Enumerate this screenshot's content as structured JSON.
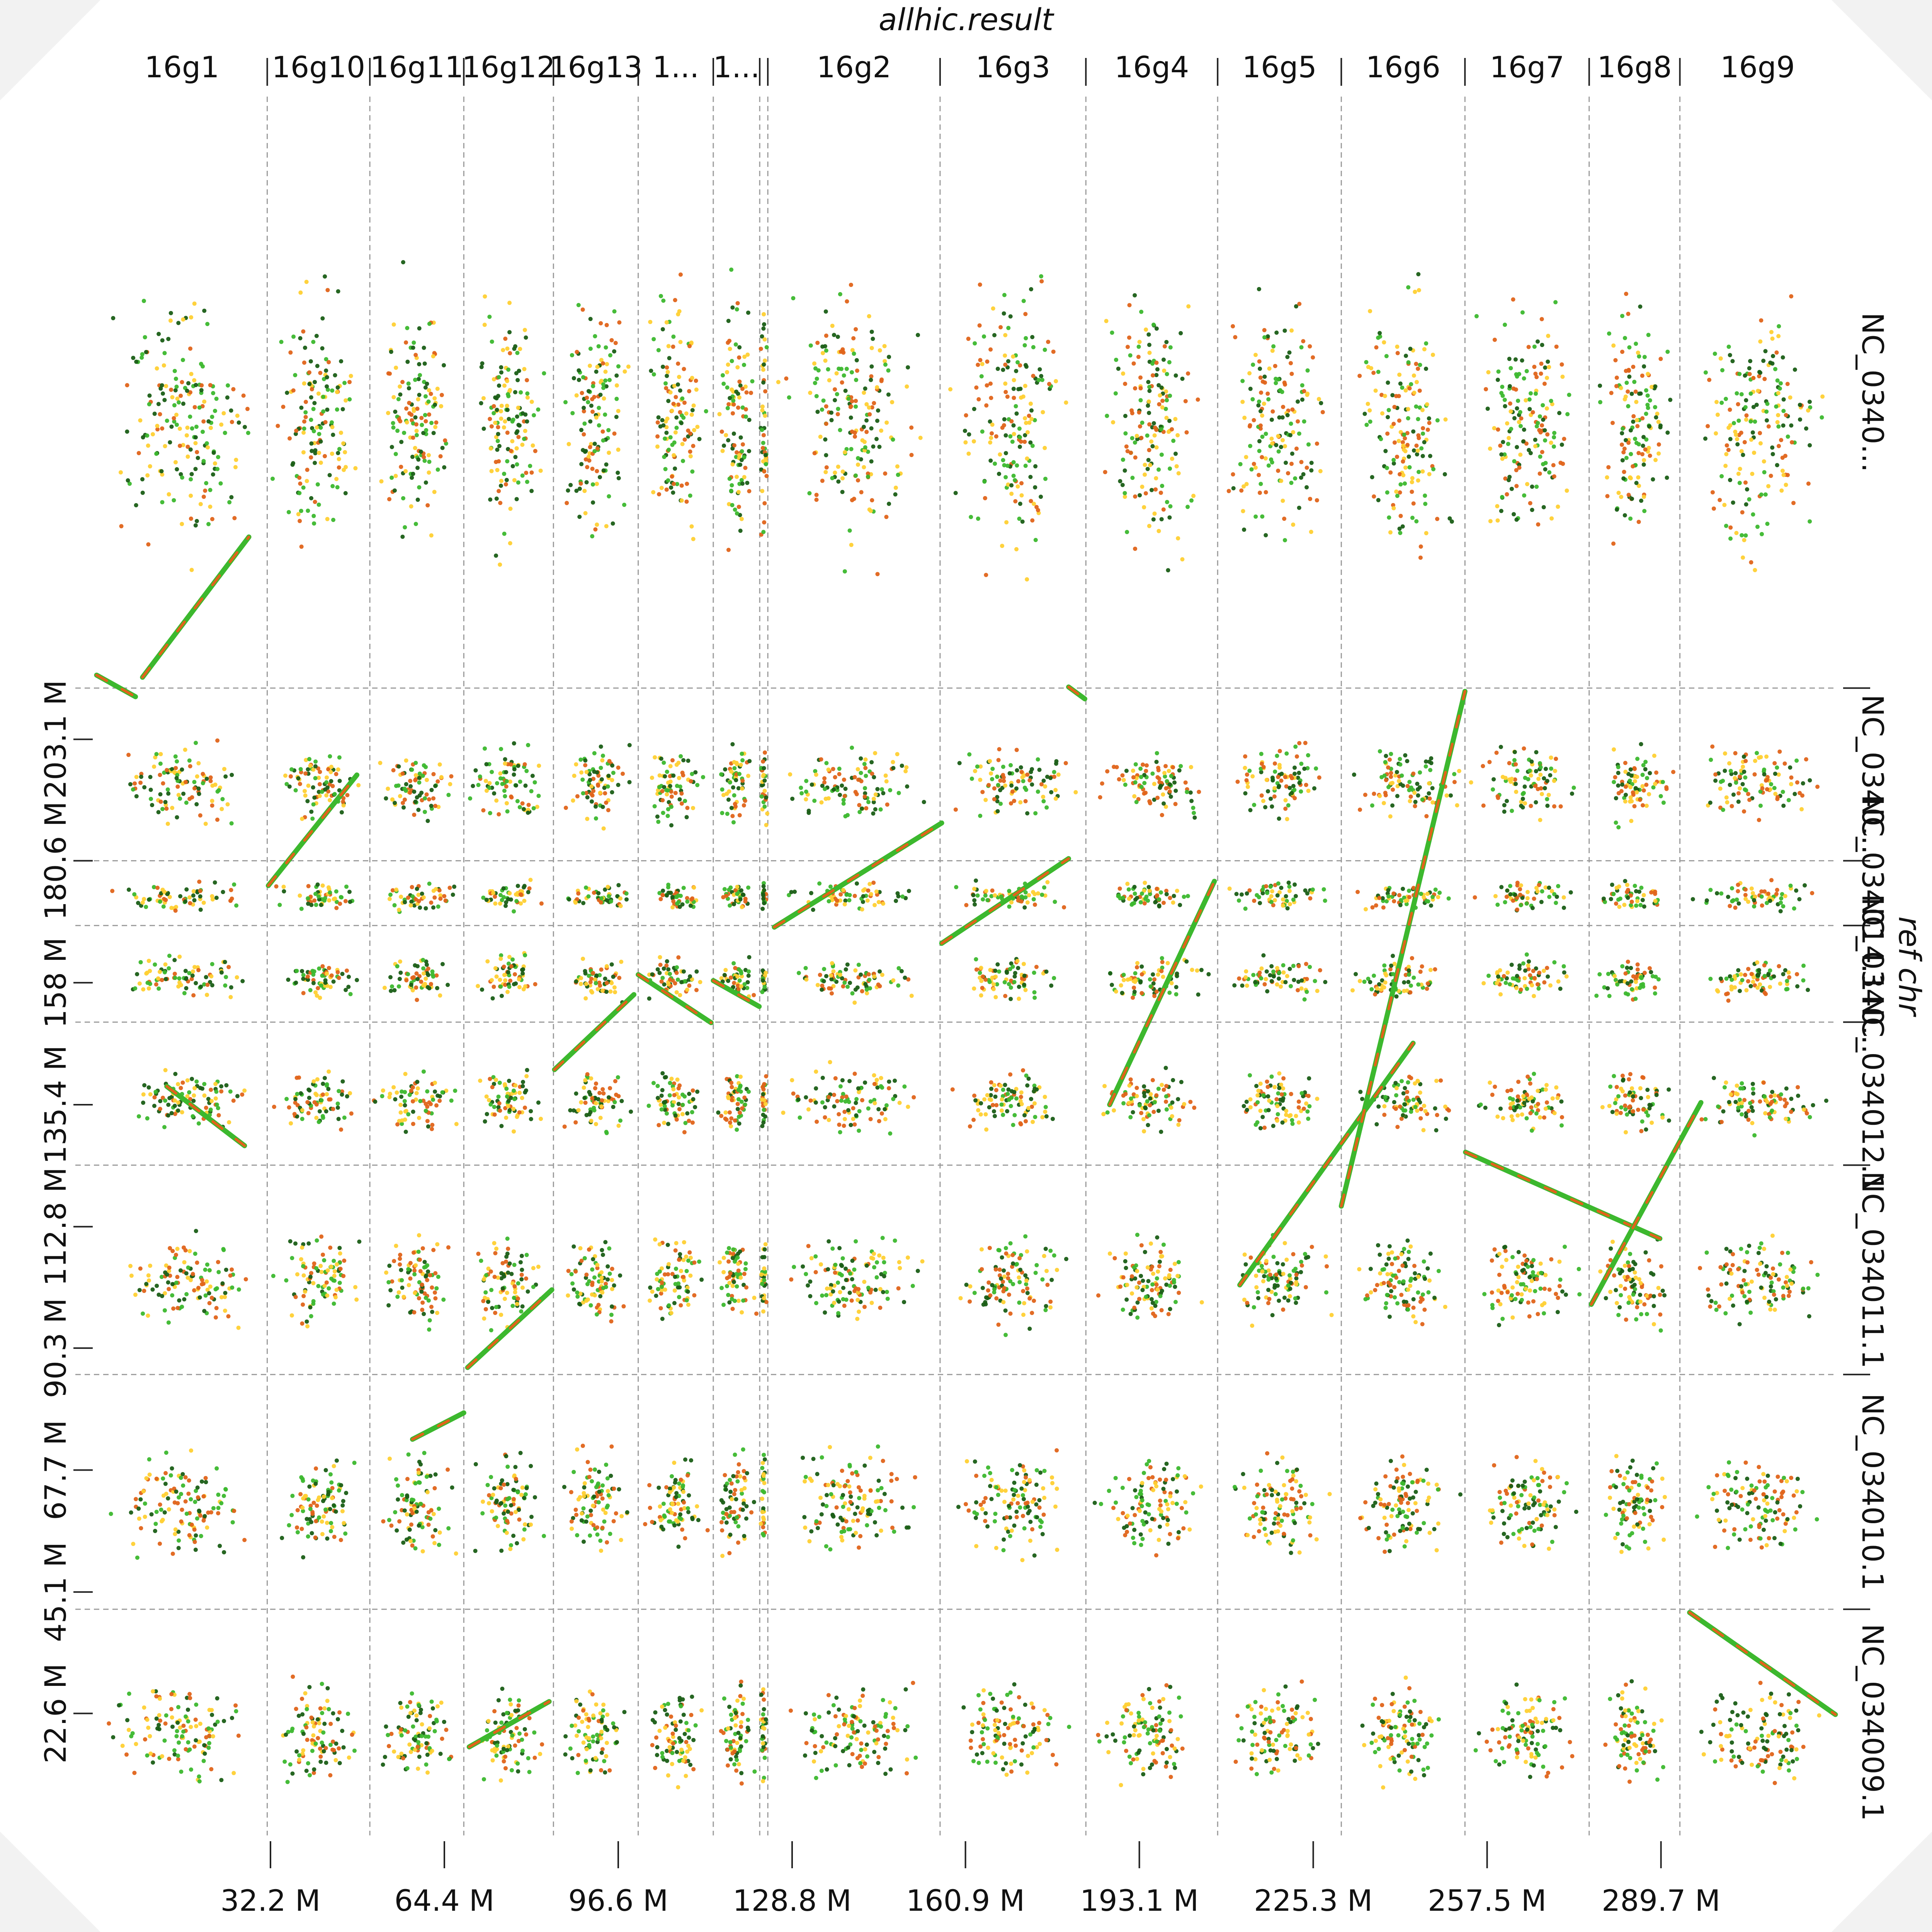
{
  "chart_data": {
    "type": "scatter",
    "title": "allhic.result",
    "xlabel": "",
    "ylabel": "ref chr",
    "xlim": [
      0,
      322000000
    ],
    "ylim": [
      0,
      322200000
    ],
    "grid": true,
    "colors": [
      "#1a5e16",
      "#3cb82e",
      "#ffd033",
      "#e0641a"
    ],
    "x_groups": [
      {
        "label": "16g1",
        "start": 0,
        "end": 31600000
      },
      {
        "label": "16g10",
        "start": 31600000,
        "end": 50600000
      },
      {
        "label": "16g11",
        "start": 50600000,
        "end": 68000000
      },
      {
        "label": "16g12",
        "start": 68000000,
        "end": 84600000
      },
      {
        "label": "16g13",
        "start": 84600000,
        "end": 100300000
      },
      {
        "label": "1...",
        "start": 100300000,
        "end": 114200000
      },
      {
        "label": "1...",
        "start": 114200000,
        "end": 122800000
      },
      {
        "label": "",
        "start": 122800000,
        "end": 124300000
      },
      {
        "label": "16g2",
        "start": 124300000,
        "end": 156200000
      },
      {
        "label": "16g3",
        "start": 156200000,
        "end": 183200000
      },
      {
        "label": "16g4",
        "start": 183200000,
        "end": 207600000
      },
      {
        "label": "16g5",
        "start": 207600000,
        "end": 230500000
      },
      {
        "label": "16g6",
        "start": 230500000,
        "end": 253400000
      },
      {
        "label": "16g7",
        "start": 253400000,
        "end": 276400000
      },
      {
        "label": "16g8",
        "start": 276400000,
        "end": 293200000
      },
      {
        "label": "16g9",
        "start": 293200000,
        "end": 322000000
      }
    ],
    "y_chromosomes": [
      {
        "label": "NC_034009.1",
        "start": 0,
        "end": 41900000
      },
      {
        "label": "NC_034010.1",
        "start": 41900000,
        "end": 85400000
      },
      {
        "label": "NC_034011.1",
        "start": 85400000,
        "end": 124200000
      },
      {
        "label": "NC_034012.1",
        "start": 124200000,
        "end": 150700000
      },
      {
        "label": "NC_0340...",
        "start": 150700000,
        "end": 168600000
      },
      {
        "label": "NC_034014.1",
        "start": 168600000,
        "end": 180600000
      },
      {
        "label": "NC_0340...",
        "start": 180600000,
        "end": 212600000
      },
      {
        "label": "NC_0340...",
        "start": 212600000,
        "end": 322200000
      }
    ],
    "x_ticks": [
      {
        "value": 32200000,
        "label": "32.2 M"
      },
      {
        "value": 64400000,
        "label": "64.4 M"
      },
      {
        "value": 96600000,
        "label": "96.6 M"
      },
      {
        "value": 128800000,
        "label": "128.8 M"
      },
      {
        "value": 160900000,
        "label": "160.9 M"
      },
      {
        "value": 193100000,
        "label": "193.1 M"
      },
      {
        "value": 225300000,
        "label": "225.3 M"
      },
      {
        "value": 257500000,
        "label": "257.5 M"
      },
      {
        "value": 289700000,
        "label": "289.7 M"
      }
    ],
    "y_ticks": [
      {
        "value": 22600000,
        "label": "22.6 M"
      },
      {
        "value": 45100000,
        "label": "45.1 M"
      },
      {
        "value": 67700000,
        "label": "67.7 M"
      },
      {
        "value": 90300000,
        "label": "90.3 M"
      },
      {
        "value": 112800000,
        "label": "112.8 M"
      },
      {
        "value": 135400000,
        "label": "135.4 M"
      },
      {
        "value": 158000000,
        "label": "158 M"
      },
      {
        "value": 180600000,
        "label": "180.6 M"
      },
      {
        "value": 203100000,
        "label": "203.1 M"
      }
    ],
    "synteny_segments": [
      {
        "x": [
          0,
          7200000
        ],
        "y": [
          215000000,
          211000000
        ]
      },
      {
        "x": [
          8500000,
          28200000
        ],
        "y": [
          214600000,
          240600000
        ]
      },
      {
        "x": [
          31800000,
          48200000
        ],
        "y": [
          176000000,
          196500000
        ]
      },
      {
        "x": [
          69000000,
          83800000
        ],
        "y": [
          16400000,
          24800000
        ]
      },
      {
        "x": [
          68700000,
          84300000
        ],
        "y": [
          86700000,
          101100000
        ]
      },
      {
        "x": [
          58500000,
          68000000
        ],
        "y": [
          73400000,
          78300000
        ]
      },
      {
        "x": [
          13000000,
          27400000
        ],
        "y": [
          138800000,
          127800000
        ]
      },
      {
        "x": [
          84800000,
          99500000
        ],
        "y": [
          141900000,
          155800000
        ]
      },
      {
        "x": [
          100300000,
          113800000
        ],
        "y": [
          159500000,
          150600000
        ]
      },
      {
        "x": [
          114200000,
          122700000
        ],
        "y": [
          158400000,
          153600000
        ]
      },
      {
        "x": [
          125500000,
          156500000
        ],
        "y": [
          168300000,
          187600000
        ]
      },
      {
        "x": [
          156500000,
          180000000
        ],
        "y": [
          165300000,
          181000000
        ]
      },
      {
        "x": [
          180000000,
          183000000
        ],
        "y": [
          212800000,
          210600000
        ]
      },
      {
        "x": [
          187600000,
          207000000
        ],
        "y": [
          135400000,
          176800000
        ]
      },
      {
        "x": [
          211700000,
          243800000
        ],
        "y": [
          102000000,
          146800000
        ]
      },
      {
        "x": [
          230500000,
          253400000
        ],
        "y": [
          116600000,
          212000000
        ]
      },
      {
        "x": [
          253500000,
          289500000
        ],
        "y": [
          126600000,
          110600000
        ]
      },
      {
        "x": [
          276800000,
          297100000
        ],
        "y": [
          98400000,
          135800000
        ]
      },
      {
        "x": [
          295000000,
          322000000
        ],
        "y": [
          41300000,
          22400000
        ]
      }
    ]
  }
}
